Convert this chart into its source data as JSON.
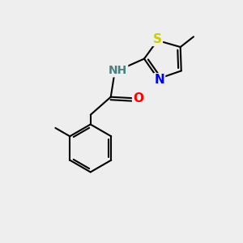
{
  "background_color": "#eeeeee",
  "bond_color": "#000000",
  "bond_width": 1.5,
  "S_color": "#cccc00",
  "N_color": "#0000ff",
  "NH_color": "#4a8080",
  "O_color": "#ff0000",
  "figsize": [
    3.0,
    3.0
  ],
  "dpi": 100,
  "xlim": [
    0,
    10
  ],
  "ylim": [
    0,
    10
  ]
}
